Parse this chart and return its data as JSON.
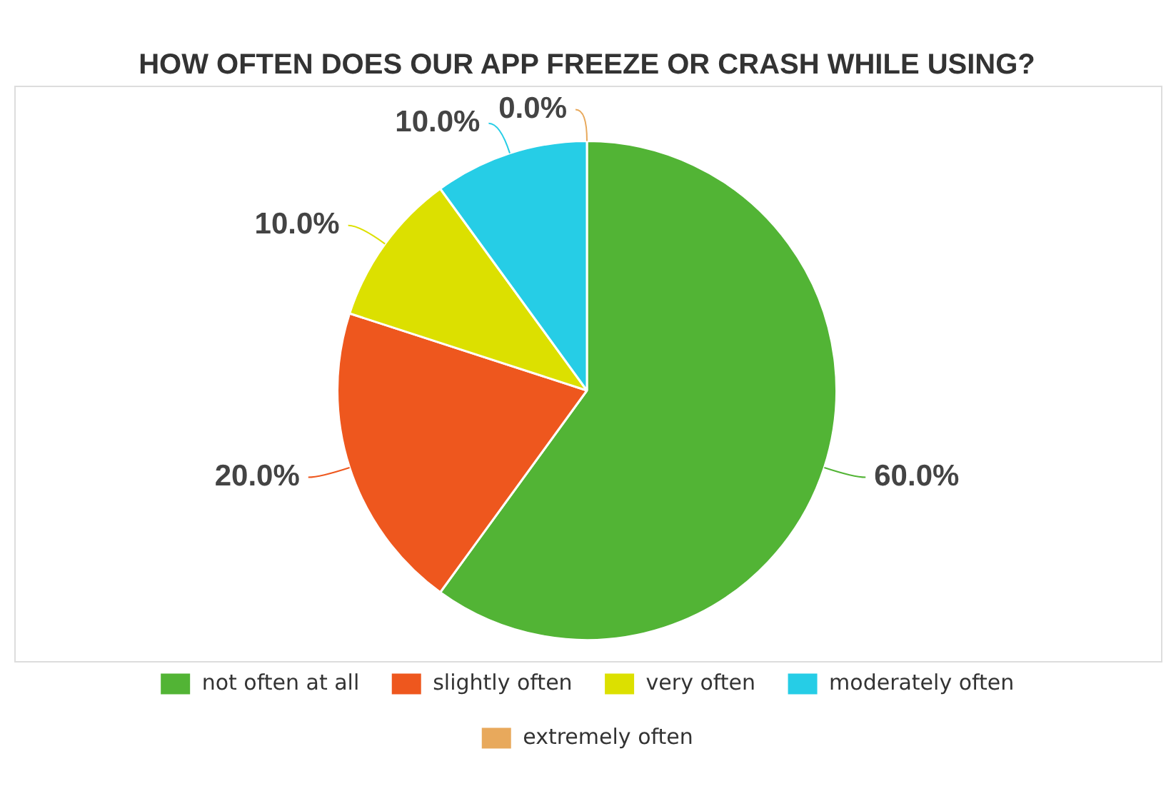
{
  "chart_data": {
    "type": "pie",
    "title": "HOW OFTEN DOES OUR APP FREEZE OR CRASH WHILE USING?",
    "categories": [
      "not often at all",
      "slightly often",
      "very often",
      "moderately often",
      "extremely often"
    ],
    "values": [
      60,
      20,
      10,
      10,
      0
    ],
    "colors": [
      "#52b435",
      "#ee571e",
      "#dce000",
      "#26cde6",
      "#e8a95c"
    ],
    "value_labels": [
      "60.0%",
      "20.0%",
      "10.0%",
      "10.0%",
      "0.0%"
    ],
    "legend": "bottom"
  }
}
